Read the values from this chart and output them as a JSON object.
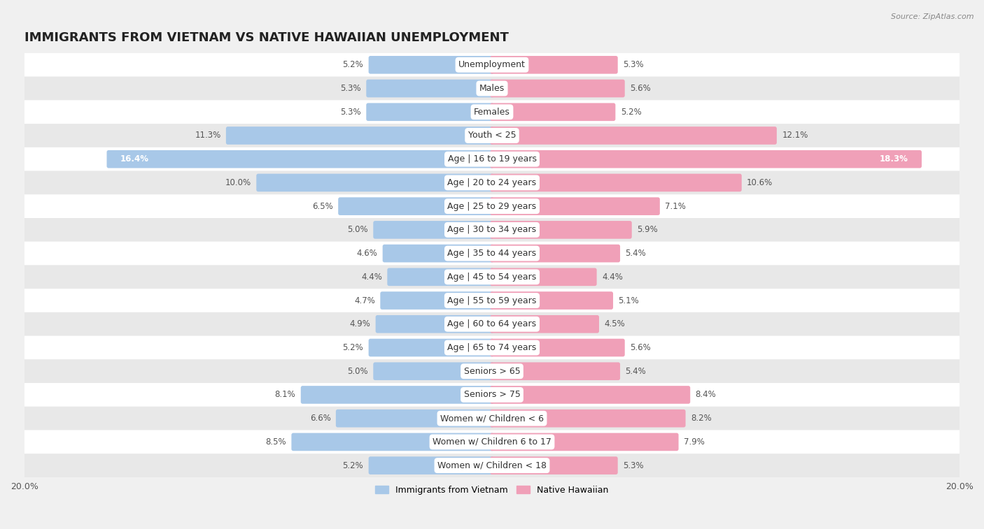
{
  "title": "IMMIGRANTS FROM VIETNAM VS NATIVE HAWAIIAN UNEMPLOYMENT",
  "source": "Source: ZipAtlas.com",
  "categories": [
    "Unemployment",
    "Males",
    "Females",
    "Youth < 25",
    "Age | 16 to 19 years",
    "Age | 20 to 24 years",
    "Age | 25 to 29 years",
    "Age | 30 to 34 years",
    "Age | 35 to 44 years",
    "Age | 45 to 54 years",
    "Age | 55 to 59 years",
    "Age | 60 to 64 years",
    "Age | 65 to 74 years",
    "Seniors > 65",
    "Seniors > 75",
    "Women w/ Children < 6",
    "Women w/ Children 6 to 17",
    "Women w/ Children < 18"
  ],
  "vietnam_values": [
    5.2,
    5.3,
    5.3,
    11.3,
    16.4,
    10.0,
    6.5,
    5.0,
    4.6,
    4.4,
    4.7,
    4.9,
    5.2,
    5.0,
    8.1,
    6.6,
    8.5,
    5.2
  ],
  "hawaiian_values": [
    5.3,
    5.6,
    5.2,
    12.1,
    18.3,
    10.6,
    7.1,
    5.9,
    5.4,
    4.4,
    5.1,
    4.5,
    5.6,
    5.4,
    8.4,
    8.2,
    7.9,
    5.3
  ],
  "vietnam_color": "#a8c8e8",
  "hawaiian_color": "#f0a0b8",
  "vietnam_label": "Immigrants from Vietnam",
  "hawaiian_label": "Native Hawaiian",
  "xlim": 20.0,
  "row_color_odd": "#f0f0f0",
  "row_color_even": "#e0e0e0",
  "bg_color": "#f0f0f0",
  "title_fontsize": 13,
  "label_fontsize": 9,
  "value_fontsize": 8.5,
  "legend_fontsize": 9,
  "bar_height": 0.6,
  "inside_label_threshold": 14.0
}
